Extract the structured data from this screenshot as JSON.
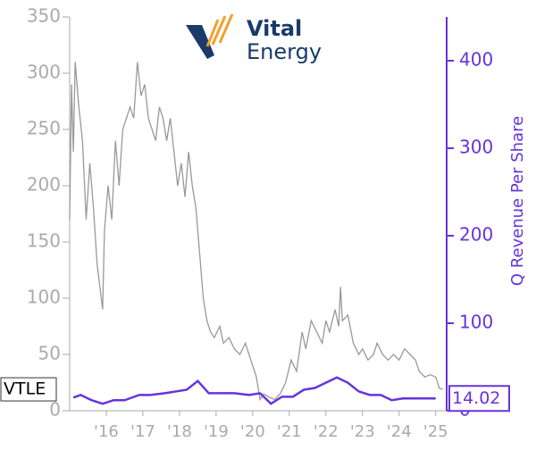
{
  "chart_data": {
    "type": "line",
    "logo": {
      "line1": "Vital",
      "line2": "Energy"
    },
    "y2label": "Q Revenue Per Share",
    "xlim": [
      2015.0,
      2025.3
    ],
    "xticks": [
      {
        "value": 2016,
        "label": "'16"
      },
      {
        "value": 2017,
        "label": "'17"
      },
      {
        "value": 2018,
        "label": "'18"
      },
      {
        "value": 2019,
        "label": "'19"
      },
      {
        "value": 2020,
        "label": "'20"
      },
      {
        "value": 2021,
        "label": "'21"
      },
      {
        "value": 2022,
        "label": "'22"
      },
      {
        "value": 2023,
        "label": "'23"
      },
      {
        "value": 2024,
        "label": "'24"
      },
      {
        "value": 2025,
        "label": "'25"
      }
    ],
    "ylim": [
      0,
      350
    ],
    "yticks": [
      0,
      50,
      100,
      150,
      200,
      250,
      300,
      350
    ],
    "y2lim": [
      0,
      450
    ],
    "y2ticks": [
      0,
      100,
      200,
      300,
      400
    ],
    "series": [
      {
        "name": "VTLE",
        "color": "#999999",
        "x": [
          2015.0,
          2015.05,
          2015.1,
          2015.15,
          2015.25,
          2015.35,
          2015.45,
          2015.55,
          2015.65,
          2015.75,
          2015.9,
          2015.95,
          2016.05,
          2016.15,
          2016.25,
          2016.35,
          2016.45,
          2016.55,
          2016.65,
          2016.75,
          2016.85,
          2016.95,
          2017.05,
          2017.15,
          2017.25,
          2017.35,
          2017.45,
          2017.55,
          2017.65,
          2017.75,
          2017.85,
          2017.95,
          2018.05,
          2018.15,
          2018.25,
          2018.35,
          2018.45,
          2018.55,
          2018.65,
          2018.75,
          2018.85,
          2018.95,
          2019.1,
          2019.2,
          2019.35,
          2019.5,
          2019.65,
          2019.8,
          2019.95,
          2020.1,
          2020.2,
          2020.3,
          2020.45,
          2020.6,
          2020.75,
          2020.9,
          2021.05,
          2021.2,
          2021.35,
          2021.45,
          2021.6,
          2021.75,
          2021.9,
          2022.0,
          2022.1,
          2022.25,
          2022.35,
          2022.4,
          2022.45,
          2022.6,
          2022.75,
          2022.9,
          2023.0,
          2023.15,
          2023.3,
          2023.4,
          2023.55,
          2023.7,
          2023.85,
          2024.0,
          2024.15,
          2024.3,
          2024.45,
          2024.55,
          2024.7,
          2024.85,
          2025.0,
          2025.1,
          2025.2
        ],
        "values": [
          170,
          290,
          230,
          310,
          270,
          240,
          170,
          220,
          180,
          130,
          90,
          160,
          200,
          170,
          240,
          200,
          250,
          260,
          270,
          260,
          310,
          280,
          290,
          260,
          250,
          240,
          270,
          260,
          240,
          260,
          230,
          200,
          220,
          190,
          230,
          200,
          180,
          140,
          100,
          80,
          70,
          65,
          75,
          60,
          65,
          55,
          50,
          60,
          45,
          30,
          10,
          15,
          12,
          10,
          15,
          25,
          45,
          35,
          70,
          55,
          80,
          70,
          60,
          80,
          70,
          90,
          75,
          110,
          80,
          85,
          60,
          50,
          55,
          45,
          50,
          60,
          50,
          45,
          50,
          45,
          55,
          50,
          45,
          35,
          30,
          32,
          30,
          20,
          19
        ]
      },
      {
        "name": "Q Revenue Per Share",
        "color": "#6633dd",
        "axis": "y2",
        "x": [
          2015.1,
          2015.3,
          2015.6,
          2015.9,
          2016.2,
          2016.5,
          2016.9,
          2017.2,
          2017.6,
          2017.9,
          2018.2,
          2018.5,
          2018.8,
          2019.1,
          2019.5,
          2019.9,
          2020.2,
          2020.5,
          2020.8,
          2021.1,
          2021.4,
          2021.7,
          2022.0,
          2022.3,
          2022.6,
          2022.9,
          2023.2,
          2023.5,
          2023.8,
          2024.1,
          2024.5,
          2024.8,
          2025.0
        ],
        "values": [
          15,
          18,
          12,
          8,
          12,
          12,
          18,
          18,
          20,
          22,
          24,
          34,
          20,
          20,
          20,
          18,
          20,
          8,
          16,
          16,
          24,
          26,
          32,
          38,
          32,
          22,
          18,
          18,
          12,
          14,
          14,
          14,
          14.02
        ]
      }
    ]
  }
}
